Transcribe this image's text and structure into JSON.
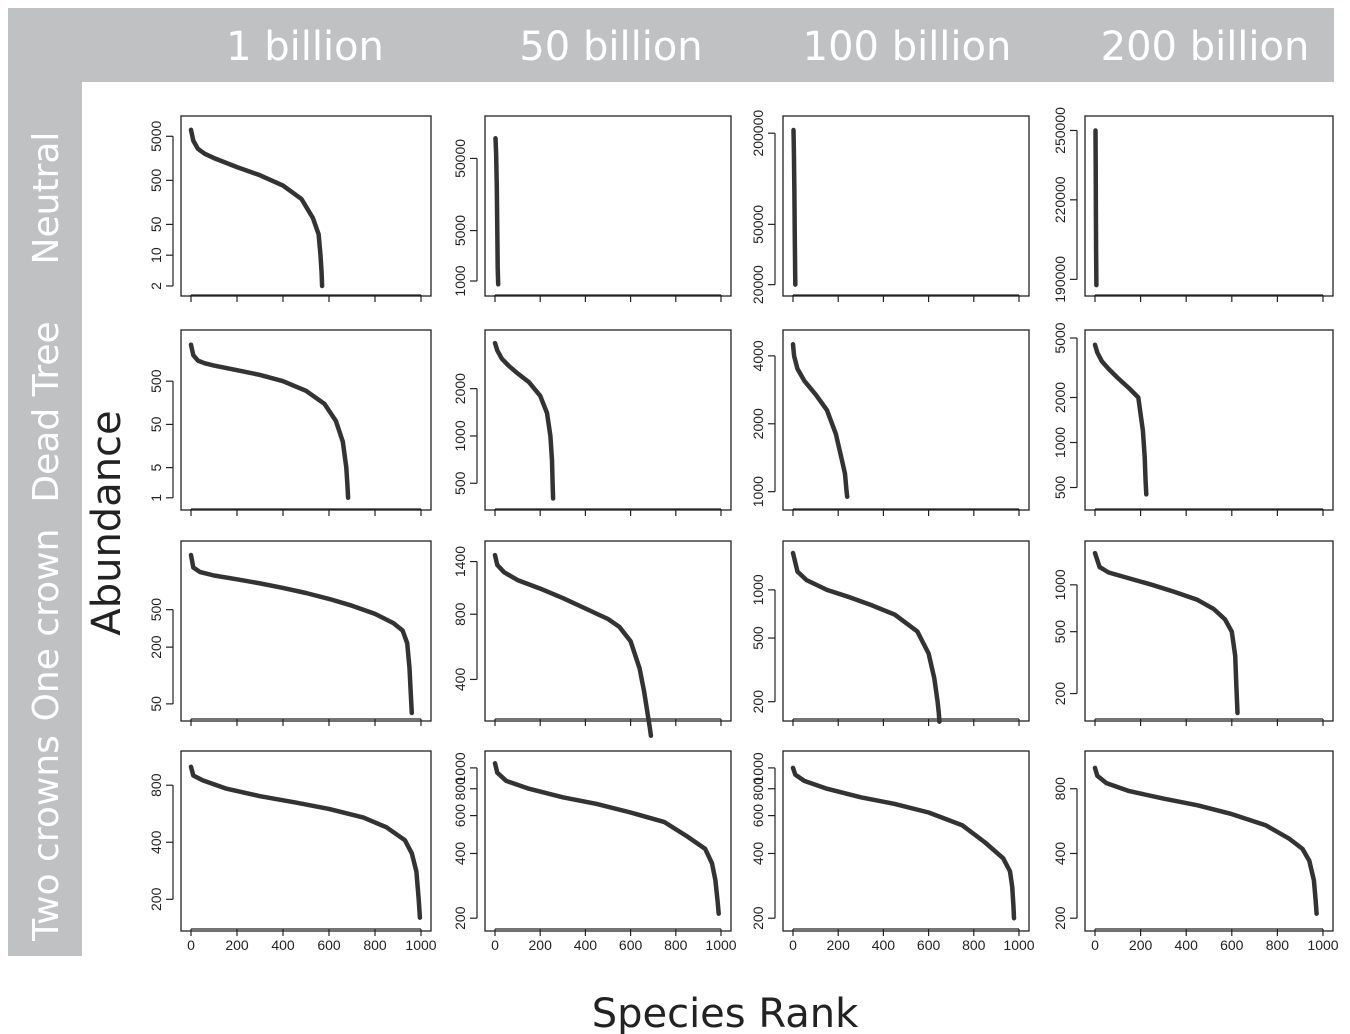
{
  "columns": [
    "1 billion",
    "50 billion",
    "100 billion",
    "200 billion"
  ],
  "rows": [
    "Neutral",
    "Dead Tree",
    "One crown",
    "Two crowns"
  ],
  "xlabel": "Species Rank",
  "ylabel": "Abundance",
  "chart_data": {
    "type": "line",
    "layout": "4x4 grid of rank-abundance curves",
    "x_ticks": [
      0,
      200,
      400,
      600,
      800,
      1000
    ],
    "xlim": [
      0,
      1000
    ],
    "y_scale": "log",
    "panels": [
      {
        "row": "Neutral",
        "col": "1 billion",
        "y_ticks": [
          2,
          10,
          50,
          500,
          5000
        ],
        "ylim": [
          1.8,
          9500
        ],
        "x": [
          0,
          10,
          30,
          60,
          100,
          200,
          300,
          400,
          480,
          530,
          555,
          563,
          568,
          570
        ],
        "y": [
          7000,
          4000,
          2600,
          2000,
          1600,
          1000,
          650,
          380,
          190,
          70,
          30,
          10,
          4,
          2
        ]
      },
      {
        "row": "Neutral",
        "col": "50 billion",
        "y_ticks": [
          1000,
          5000,
          50000
        ],
        "ylim": [
          800,
          150000
        ],
        "x": [
          2,
          5,
          8,
          10,
          12,
          14
        ],
        "y": [
          95000,
          60000,
          20000,
          5000,
          1500,
          900
        ]
      },
      {
        "row": "Neutral",
        "col": "100 billion",
        "y_ticks": [
          20000,
          50000,
          200000
        ],
        "ylim": [
          19000,
          230000
        ],
        "x": [
          2,
          4,
          6,
          8,
          10
        ],
        "y": [
          210000,
          150000,
          80000,
          40000,
          20000
        ]
      },
      {
        "row": "Neutral",
        "col": "200 billion",
        "y_ticks": [
          190000,
          220000,
          250000
        ],
        "ylim": [
          187000,
          253000
        ],
        "x": [
          2,
          3,
          4,
          5,
          6
        ],
        "y": [
          250000,
          235000,
          215000,
          200000,
          188000
        ]
      },
      {
        "row": "Dead Tree",
        "col": "1 billion",
        "y_ticks": [
          1,
          5,
          50,
          500
        ],
        "ylim": [
          0.8,
          5000
        ],
        "x": [
          0,
          10,
          30,
          60,
          100,
          200,
          300,
          400,
          500,
          580,
          630,
          660,
          675,
          680,
          683
        ],
        "y": [
          3500,
          2000,
          1500,
          1300,
          1150,
          900,
          700,
          500,
          300,
          150,
          60,
          20,
          5,
          2,
          1
        ]
      },
      {
        "row": "Dead Tree",
        "col": "50 billion",
        "y_ticks": [
          500,
          1000,
          2000
        ],
        "ylim": [
          380,
          4200
        ],
        "x": [
          0,
          10,
          30,
          60,
          100,
          150,
          200,
          230,
          245,
          252,
          255,
          257
        ],
        "y": [
          3900,
          3500,
          3100,
          2800,
          2500,
          2200,
          1800,
          1400,
          1000,
          700,
          500,
          400
        ]
      },
      {
        "row": "Dead Tree",
        "col": "100 billion",
        "y_ticks": [
          1000,
          2000,
          4000
        ],
        "ylim": [
          900,
          4800
        ],
        "x": [
          0,
          5,
          20,
          50,
          100,
          150,
          190,
          215,
          230,
          237,
          240
        ],
        "y": [
          4500,
          4000,
          3500,
          3100,
          2700,
          2300,
          1800,
          1400,
          1200,
          1000,
          950
        ]
      },
      {
        "row": "Dead Tree",
        "col": "200 billion",
        "y_ticks": [
          500,
          1000,
          2000,
          5000
        ],
        "ylim": [
          400,
          5000
        ],
        "x": [
          0,
          10,
          30,
          60,
          100,
          150,
          190,
          210,
          218,
          222,
          225
        ],
        "y": [
          4500,
          4000,
          3500,
          3100,
          2700,
          2300,
          2000,
          1200,
          800,
          550,
          450
        ]
      },
      {
        "row": "One crown",
        "col": "1 billion",
        "y_ticks": [
          50,
          200,
          500
        ],
        "ylim": [
          40,
          2200
        ],
        "x": [
          0,
          10,
          40,
          100,
          200,
          300,
          400,
          500,
          600,
          700,
          800,
          880,
          920,
          940,
          950,
          955,
          960
        ],
        "y": [
          1900,
          1400,
          1250,
          1150,
          1050,
          950,
          850,
          750,
          650,
          550,
          450,
          360,
          300,
          220,
          120,
          70,
          40
        ]
      },
      {
        "row": "One crown",
        "col": "50 billion",
        "y_ticks": [
          400,
          800,
          1400
        ],
        "ylim": [
          280,
          1600
        ],
        "x": [
          0,
          10,
          40,
          100,
          200,
          300,
          400,
          500,
          550,
          600,
          640,
          660,
          675,
          685,
          690
        ],
        "y": [
          1500,
          1350,
          1250,
          1150,
          1050,
          950,
          850,
          760,
          700,
          600,
          450,
          350,
          280,
          240,
          220
        ]
      },
      {
        "row": "One crown",
        "col": "100 billion",
        "y_ticks": [
          200,
          500,
          1000
        ],
        "ylim": [
          170,
          1800
        ],
        "x": [
          0,
          20,
          60,
          150,
          250,
          350,
          450,
          550,
          600,
          625,
          640,
          645,
          648
        ],
        "y": [
          1700,
          1300,
          1150,
          1000,
          900,
          800,
          700,
          550,
          400,
          280,
          200,
          170,
          150
        ]
      },
      {
        "row": "One crown",
        "col": "200 billion",
        "y_ticks": [
          200,
          500,
          1000
        ],
        "ylim": [
          150,
          1700
        ],
        "x": [
          0,
          20,
          60,
          150,
          250,
          350,
          450,
          520,
          570,
          600,
          615,
          620,
          625
        ],
        "y": [
          1600,
          1300,
          1200,
          1100,
          1000,
          900,
          800,
          700,
          600,
          500,
          350,
          220,
          150
        ]
      },
      {
        "row": "Two crowns",
        "col": "1 billion",
        "y_ticks": [
          200,
          400,
          800
        ],
        "ylim": [
          150,
          1100
        ],
        "x": [
          0,
          10,
          50,
          150,
          300,
          450,
          600,
          750,
          850,
          930,
          960,
          980,
          990,
          995
        ],
        "y": [
          1000,
          900,
          850,
          770,
          700,
          650,
          600,
          540,
          480,
          410,
          350,
          280,
          200,
          160
        ]
      },
      {
        "row": "Two crowns",
        "col": "50 billion",
        "y_ticks": [
          200,
          400,
          600,
          800,
          1000
        ],
        "ylim": [
          190,
          1100
        ],
        "x": [
          0,
          10,
          50,
          150,
          300,
          450,
          600,
          750,
          850,
          930,
          960,
          975,
          985,
          990
        ],
        "y": [
          1050,
          950,
          870,
          800,
          730,
          680,
          620,
          560,
          480,
          420,
          360,
          300,
          240,
          210
        ]
      },
      {
        "row": "Two crowns",
        "col": "100 billion",
        "y_ticks": [
          200,
          400,
          600,
          800,
          1000
        ],
        "ylim": [
          190,
          1100
        ],
        "x": [
          0,
          10,
          50,
          150,
          300,
          450,
          600,
          750,
          850,
          930,
          960,
          970,
          975,
          978
        ],
        "y": [
          1000,
          930,
          870,
          800,
          730,
          680,
          620,
          540,
          450,
          380,
          330,
          280,
          230,
          200
        ]
      },
      {
        "row": "Two crowns",
        "col": "200 billion",
        "y_ticks": [
          200,
          400,
          800
        ],
        "ylim": [
          190,
          1100
        ],
        "x": [
          0,
          10,
          50,
          150,
          300,
          450,
          600,
          750,
          850,
          910,
          940,
          960,
          968,
          972
        ],
        "y": [
          1000,
          920,
          850,
          780,
          720,
          670,
          610,
          540,
          470,
          420,
          370,
          300,
          240,
          210
        ]
      }
    ]
  }
}
